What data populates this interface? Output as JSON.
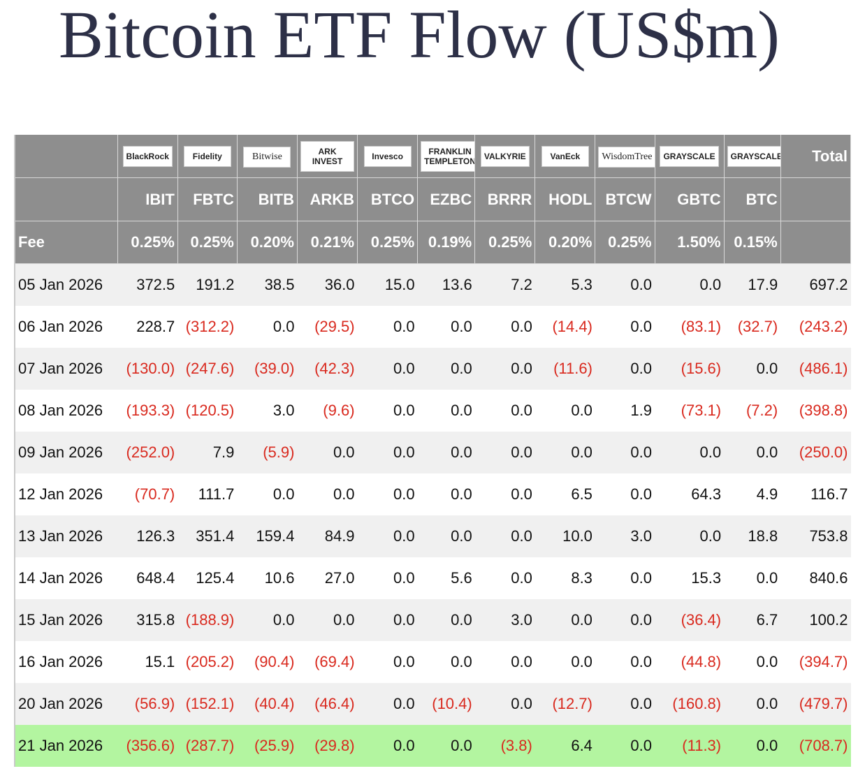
{
  "header": {
    "title": "Bitcoin ETF Flow (US$m)"
  },
  "table": {
    "issuers": [
      "BlackRock",
      "Fidelity",
      "Bitwise",
      "ARK INVEST",
      "Invesco",
      "FRANKLIN TEMPLETON",
      "VALKYRIE",
      "VanEck",
      "WisdomTree",
      "GRAYSCALE",
      "GRAYSCALE"
    ],
    "total_label": "Total",
    "tickers": [
      "IBIT",
      "FBTC",
      "BITB",
      "ARKB",
      "BTCO",
      "EZBC",
      "BRRR",
      "HODL",
      "BTCW",
      "GBTC",
      "BTC"
    ],
    "fee_label": "Fee",
    "fees": [
      "0.25%",
      "0.25%",
      "0.20%",
      "0.21%",
      "0.25%",
      "0.19%",
      "0.25%",
      "0.20%",
      "0.25%",
      "1.50%",
      "0.15%"
    ],
    "rows": [
      {
        "date": "05 Jan 2026",
        "values": [
          "372.5",
          "191.2",
          "38.5",
          "36.0",
          "15.0",
          "13.6",
          "7.2",
          "5.3",
          "0.0",
          "0.0",
          "17.9",
          "697.2"
        ]
      },
      {
        "date": "06 Jan 2026",
        "values": [
          "228.7",
          "(312.2)",
          "0.0",
          "(29.5)",
          "0.0",
          "0.0",
          "0.0",
          "(14.4)",
          "0.0",
          "(83.1)",
          "(32.7)",
          "(243.2)"
        ]
      },
      {
        "date": "07 Jan 2026",
        "values": [
          "(130.0)",
          "(247.6)",
          "(39.0)",
          "(42.3)",
          "0.0",
          "0.0",
          "0.0",
          "(11.6)",
          "0.0",
          "(15.6)",
          "0.0",
          "(486.1)"
        ]
      },
      {
        "date": "08 Jan 2026",
        "values": [
          "(193.3)",
          "(120.5)",
          "3.0",
          "(9.6)",
          "0.0",
          "0.0",
          "0.0",
          "0.0",
          "1.9",
          "(73.1)",
          "(7.2)",
          "(398.8)"
        ]
      },
      {
        "date": "09 Jan 2026",
        "values": [
          "(252.0)",
          "7.9",
          "(5.9)",
          "0.0",
          "0.0",
          "0.0",
          "0.0",
          "0.0",
          "0.0",
          "0.0",
          "0.0",
          "(250.0)"
        ]
      },
      {
        "date": "12 Jan 2026",
        "values": [
          "(70.7)",
          "111.7",
          "0.0",
          "0.0",
          "0.0",
          "0.0",
          "0.0",
          "6.5",
          "0.0",
          "64.3",
          "4.9",
          "116.7"
        ]
      },
      {
        "date": "13 Jan 2026",
        "values": [
          "126.3",
          "351.4",
          "159.4",
          "84.9",
          "0.0",
          "0.0",
          "0.0",
          "10.0",
          "3.0",
          "0.0",
          "18.8",
          "753.8"
        ]
      },
      {
        "date": "14 Jan 2026",
        "values": [
          "648.4",
          "125.4",
          "10.6",
          "27.0",
          "0.0",
          "5.6",
          "0.0",
          "8.3",
          "0.0",
          "15.3",
          "0.0",
          "840.6"
        ]
      },
      {
        "date": "15 Jan 2026",
        "values": [
          "315.8",
          "(188.9)",
          "0.0",
          "0.0",
          "0.0",
          "0.0",
          "3.0",
          "0.0",
          "0.0",
          "(36.4)",
          "6.7",
          "100.2"
        ]
      },
      {
        "date": "16 Jan 2026",
        "values": [
          "15.1",
          "(205.2)",
          "(90.4)",
          "(69.4)",
          "0.0",
          "0.0",
          "0.0",
          "0.0",
          "0.0",
          "(44.8)",
          "0.0",
          "(394.7)"
        ]
      },
      {
        "date": "20 Jan 2026",
        "values": [
          "(56.9)",
          "(152.1)",
          "(40.4)",
          "(46.4)",
          "0.0",
          "(10.4)",
          "0.0",
          "(12.7)",
          "0.0",
          "(160.8)",
          "0.0",
          "(479.7)"
        ]
      },
      {
        "date": "21 Jan 2026",
        "values": [
          "(356.6)",
          "(287.7)",
          "(25.9)",
          "(29.8)",
          "0.0",
          "0.0",
          "(3.8)",
          "6.4",
          "0.0",
          "(11.3)",
          "0.0",
          "(708.7)"
        ]
      }
    ]
  }
}
